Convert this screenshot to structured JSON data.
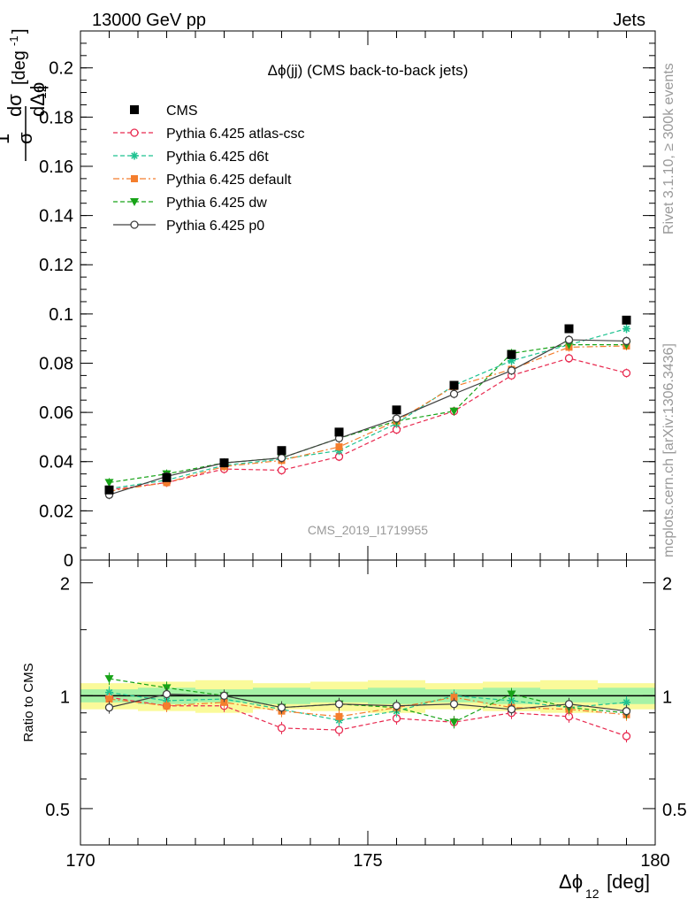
{
  "header": {
    "left": "13000 GeV pp",
    "right": "Jets"
  },
  "side_labels": {
    "rivet": "Rivet 3.1.10, ≥ 300k events",
    "mcplots": "mcplots.cern.ch [arXiv:1306.3436]"
  },
  "watermark": "CMS_2019_I1719955",
  "chart_data": [
    {
      "type": "scatter",
      "title": "Δϕ(jj) (CMS back-to-back jets)",
      "ylabel": "1/σ dσ/dΔϕ_12 [deg^-1]",
      "xlim": [
        170,
        180
      ],
      "ylim": [
        0,
        0.215
      ],
      "yticks": [
        0,
        0.02,
        0.04,
        0.06,
        0.08,
        0.1,
        0.12,
        0.14,
        0.16,
        0.18,
        0.2
      ],
      "ytick_labels": [
        "0",
        "0.02",
        "0.04",
        "0.06",
        "0.08",
        "0.1",
        "0.12",
        "0.14",
        "0.16",
        "0.18",
        "0.2"
      ],
      "x": [
        170.5,
        171.5,
        172.5,
        173.5,
        174.5,
        175.5,
        176.5,
        177.5,
        178.5,
        179.5
      ],
      "legend_position": "top-left",
      "series": [
        {
          "name": "CMS",
          "color": "#000000",
          "marker": "square",
          "line": "none",
          "values": [
            0.0285,
            0.0335,
            0.0395,
            0.0445,
            0.052,
            0.061,
            0.071,
            0.0835,
            0.094,
            0.0975
          ]
        },
        {
          "name": "Pythia 6.425 atlas-csc",
          "color": "#e8294f",
          "marker": "open-circle",
          "line": "dashed",
          "values": [
            0.0285,
            0.0315,
            0.037,
            0.0365,
            0.042,
            0.053,
            0.0605,
            0.075,
            0.082,
            0.076
          ]
        },
        {
          "name": "Pythia 6.425 d6t",
          "color": "#1ec290",
          "marker": "star",
          "line": "dashed",
          "values": [
            0.029,
            0.0325,
            0.0385,
            0.041,
            0.0445,
            0.0555,
            0.071,
            0.081,
            0.0875,
            0.094
          ]
        },
        {
          "name": "Pythia 6.425 default",
          "color": "#f47e2d",
          "marker": "filled-square",
          "line": "dashdot",
          "values": [
            0.028,
            0.0315,
            0.038,
            0.0405,
            0.046,
            0.0565,
            0.0705,
            0.0775,
            0.0865,
            0.087
          ]
        },
        {
          "name": "Pythia 6.425 dw",
          "color": "#17a317",
          "marker": "filled-triangle-down",
          "line": "dashed",
          "values": [
            0.0315,
            0.035,
            0.0395,
            0.0415,
            0.0495,
            0.0565,
            0.0605,
            0.084,
            0.0875,
            0.0875
          ]
        },
        {
          "name": "Pythia 6.425 p0",
          "color": "#404040",
          "marker": "open-circle",
          "line": "solid",
          "values": [
            0.0265,
            0.034,
            0.0395,
            0.0415,
            0.0495,
            0.0575,
            0.0675,
            0.077,
            0.0895,
            0.089
          ]
        }
      ]
    },
    {
      "type": "scatter",
      "ylabel": "Ratio to CMS",
      "xlabel": "Δϕ_12 [deg]",
      "xlim": [
        170,
        180
      ],
      "ylim": [
        0.4,
        2.3
      ],
      "log_y": true,
      "yticks": [
        0.5,
        1,
        2
      ],
      "ytick_labels": [
        "0.5",
        "1",
        "2"
      ],
      "xticks": [
        170,
        175,
        180
      ],
      "xtick_labels": [
        "170",
        "175",
        "180"
      ],
      "x": [
        170.5,
        171.5,
        172.5,
        173.5,
        174.5,
        175.5,
        176.5,
        177.5,
        178.5,
        179.5
      ],
      "reference": 1,
      "series": [
        {
          "name": "Pythia 6.425 atlas-csc",
          "color": "#e8294f",
          "values": [
            0.99,
            0.94,
            0.94,
            0.82,
            0.81,
            0.87,
            0.85,
            0.9,
            0.88,
            0.78
          ]
        },
        {
          "name": "Pythia 6.425 d6t",
          "color": "#1ec290",
          "values": [
            1.02,
            0.97,
            0.98,
            0.92,
            0.86,
            0.91,
            1.0,
            0.97,
            0.93,
            0.96
          ]
        },
        {
          "name": "Pythia 6.425 default",
          "color": "#f47e2d",
          "values": [
            0.98,
            0.94,
            0.96,
            0.91,
            0.88,
            0.93,
            0.99,
            0.93,
            0.92,
            0.89
          ]
        },
        {
          "name": "Pythia 6.425 dw",
          "color": "#17a317",
          "values": [
            1.11,
            1.05,
            1.0,
            0.93,
            0.95,
            0.93,
            0.85,
            1.01,
            0.93,
            0.9
          ]
        },
        {
          "name": "Pythia 6.425 p0",
          "color": "#404040",
          "values": [
            0.93,
            1.01,
            1.0,
            0.93,
            0.95,
            0.94,
            0.95,
            0.92,
            0.95,
            0.91
          ]
        }
      ]
    }
  ]
}
